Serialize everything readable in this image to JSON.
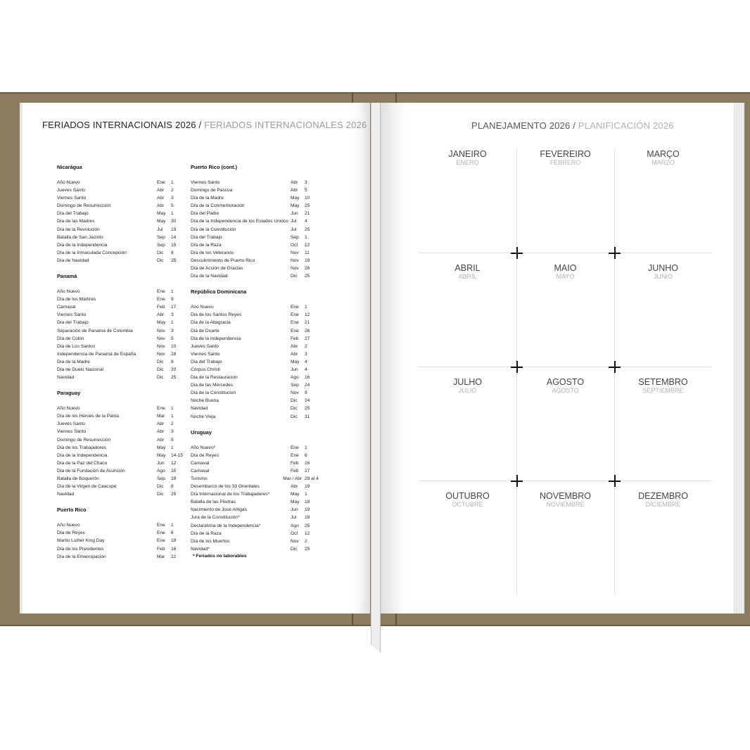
{
  "colors": {
    "cover": "#8c7c5f",
    "title_primary": "#222222",
    "title_secondary": "#9a9a9a"
  },
  "left_page": {
    "title_pt": "FERIADOS INTERNACIONAIS 2026 /",
    "title_es": "FERIADOS INTERNACIONALES 2026",
    "columns": [
      [
        {
          "country": "Nicarágua",
          "holidays": [
            [
              "Año Nuevo",
              "Ene",
              "1"
            ],
            [
              "Jueves Santo",
              "Abr",
              "2"
            ],
            [
              "Viernes Santo",
              "Abr",
              "3"
            ],
            [
              "Domingo de Resurrección",
              "Abr",
              "5"
            ],
            [
              "Día del Trabajo",
              "May",
              "1"
            ],
            [
              "Día de las Madres",
              "May",
              "30"
            ],
            [
              "Día de la Revolución",
              "Jul",
              "19"
            ],
            [
              "Batalla de San Jacinto",
              "Sep",
              "14"
            ],
            [
              "Día de la Independencia",
              "Sep",
              "15"
            ],
            [
              "Día de la Inmaculada Concepción",
              "Dic",
              "8"
            ],
            [
              "Día de Navidad",
              "Dic",
              "25"
            ]
          ]
        },
        {
          "country": "Panamá",
          "holidays": [
            [
              "Año Nuevo",
              "Ene",
              "1"
            ],
            [
              "Día de los Mártires",
              "Ene",
              "9"
            ],
            [
              "Carnaval",
              "Feb",
              "17"
            ],
            [
              "Viernes Santo",
              "Abr",
              "3"
            ],
            [
              "Día del Trabajo",
              "May",
              "1"
            ],
            [
              "Separación de Panamá de Colombia",
              "Nov",
              "3"
            ],
            [
              "Día de Colón",
              "Nov",
              "5"
            ],
            [
              "Día de Los Santos",
              "Nov",
              "10"
            ],
            [
              "Independencia de Panamá de España",
              "Nov",
              "28"
            ],
            [
              "Día de la Madre",
              "Dic",
              "8"
            ],
            [
              "Día de Duelo Nacional",
              "Dic",
              "20"
            ],
            [
              "Navidad",
              "Dic",
              "25"
            ]
          ]
        },
        {
          "country": "Paraguay",
          "holidays": [
            [
              "Año Nuevo",
              "Ene",
              "1"
            ],
            [
              "Día de los Héroes de la Patria",
              "Mar",
              "1"
            ],
            [
              "Jueves Santo",
              "Abr",
              "2"
            ],
            [
              "Viernes Santo",
              "Abr",
              "3"
            ],
            [
              "Domingo de Resurrección",
              "Abr",
              "5"
            ],
            [
              "Día de los Trabajadores",
              "May",
              "1"
            ],
            [
              "Día de la Independencia",
              "May",
              "14-15"
            ],
            [
              "Día de la Paz del Chaco",
              "Jun",
              "12"
            ],
            [
              "Día de la Fundación de Asunción",
              "Ago",
              "15"
            ],
            [
              "Batalla de Boquerón",
              "Sep",
              "29"
            ],
            [
              "Día de la Virgen de Caacupé",
              "Dic",
              "8"
            ],
            [
              "Navidad",
              "Dic",
              "25"
            ]
          ]
        },
        {
          "country": "Puerto Rico",
          "holidays": [
            [
              "Año Nuevo",
              "Ene",
              "1"
            ],
            [
              "Día de Reyes",
              "Ene",
              "6"
            ],
            [
              "Martin Luther King Day",
              "Ene",
              "19"
            ],
            [
              "Día de los Presidentes",
              "Feb",
              "16"
            ],
            [
              "Día de la Emancipación",
              "Mar",
              "22"
            ]
          ]
        }
      ],
      [
        {
          "country": "Puerto Rico (cont.)",
          "holidays": [
            [
              "Viernes Santo",
              "Abr",
              "3"
            ],
            [
              "Domingo de Pascua",
              "Abr",
              "5"
            ],
            [
              "Día de la Madre",
              "May",
              "10"
            ],
            [
              "Día de la Conmemoración",
              "May",
              "25"
            ],
            [
              "Día del Padre",
              "Jun",
              "21"
            ],
            [
              "Día de la Independencia de los Estados Unidos",
              "Jul",
              "4"
            ],
            [
              "Día de la Constitución",
              "Jul",
              "25"
            ],
            [
              "Día del Trabajo",
              "Sep",
              "1"
            ],
            [
              "Día de la Raza",
              "Oct",
              "12"
            ],
            [
              "Día de los Veteranos",
              "Nov",
              "11"
            ],
            [
              "Descubrimiento de Puerto Rico",
              "Nov",
              "19"
            ],
            [
              "Día de Acción de Gracias",
              "Nov",
              "26"
            ],
            [
              "Día de la Navidad",
              "Dic",
              "25"
            ]
          ]
        },
        {
          "country": "República Dominicana",
          "holidays": [
            [
              "Ano Nuevo",
              "Ene",
              "1"
            ],
            [
              "Dia de los Santos Reyes",
              "Ene",
              "12"
            ],
            [
              "Dia de la Altagracia",
              "Ene",
              "21"
            ],
            [
              "Dia de Duarte",
              "Ene",
              "26"
            ],
            [
              "Dia de la Independencia",
              "Feb",
              "27"
            ],
            [
              "Jueves Santo",
              "Abr",
              "2"
            ],
            [
              "Viernes Santo",
              "Abr",
              "3"
            ],
            [
              "Dia del Trabajo",
              "May",
              "4"
            ],
            [
              "Corpus Christi",
              "Jun",
              "4"
            ],
            [
              "Dia de la Restauracion",
              "Ago",
              "16"
            ],
            [
              "Dia de las Mercedes",
              "Sep",
              "24"
            ],
            [
              "Dia de la Constitucion",
              "Nov",
              "9"
            ],
            [
              "Noche Buena",
              "Dic",
              "24"
            ],
            [
              "Navidad",
              "Dic",
              "25"
            ],
            [
              "Noche Vieja",
              "Dic",
              "31"
            ]
          ]
        },
        {
          "country": "Uruguay",
          "holidays": [
            [
              "Año Nuevo*",
              "Ene",
              "1"
            ],
            [
              "Día de Reyes",
              "Ene",
              "6"
            ],
            [
              "Carnaval",
              "Feb",
              "16"
            ],
            [
              "Carnaval",
              "Feb",
              "17"
            ],
            [
              "Turismo",
              "Mar / Abr",
              "29 al 4"
            ],
            [
              "Desembarco de los 33 Orientales",
              "Abr",
              "19"
            ],
            [
              "Día Internacional de los Trabajadores*",
              "May",
              "1"
            ],
            [
              "Batalla de las Piedras",
              "May",
              "18"
            ],
            [
              "Nacimiento de José Artigas",
              "Jun",
              "19"
            ],
            [
              "Jura de la Constitución*",
              "Jul",
              "18"
            ],
            [
              "Declaratoria de la Independencia*",
              "Ago",
              "25"
            ],
            [
              "Día de la Raza",
              "Oct",
              "12"
            ],
            [
              "Día de los Muertos",
              "Nov",
              "2"
            ],
            [
              "Navidad*",
              "Dic",
              "25"
            ]
          ]
        }
      ]
    ],
    "footnote": "* Feriados no laborables"
  },
  "right_page": {
    "title_pt": "PLANEJAMENTO 2026 /",
    "title_es": "PLANIFICACIÓN 2026",
    "months": [
      [
        "JANEIRO",
        "ENERO"
      ],
      [
        "FEVEREIRO",
        "FEBRERO"
      ],
      [
        "MARÇO",
        "MARZO"
      ],
      [
        "ABRIL",
        "ABRIL"
      ],
      [
        "MAIO",
        "MAYO"
      ],
      [
        "JUNHO",
        "JUNIO"
      ],
      [
        "JULHO",
        "JULIO"
      ],
      [
        "AGOSTO",
        "AGOSTO"
      ],
      [
        "SETEMBRO",
        "SEPTIEMBRE"
      ],
      [
        "OUTUBRO",
        "OCTUBRE"
      ],
      [
        "NOVEMBRO",
        "NOVIEMBRE"
      ],
      [
        "DEZEMBRO",
        "DICIEMBRE"
      ]
    ]
  }
}
